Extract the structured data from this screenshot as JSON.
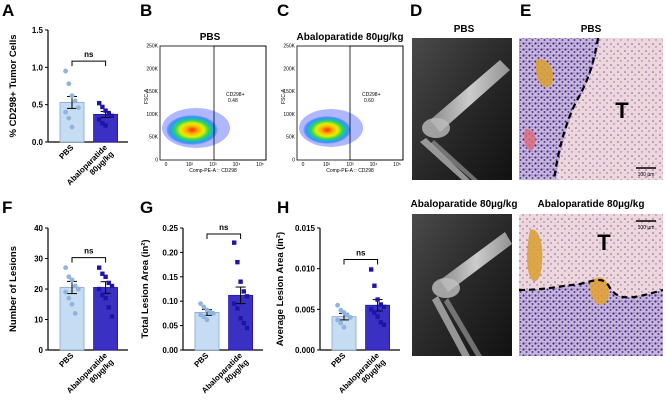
{
  "panel_labels": {
    "A": "A",
    "B": "B",
    "C": "C",
    "D": "D",
    "E": "E",
    "F": "F",
    "G": "G",
    "H": "H"
  },
  "colors": {
    "pbs_fill": "#c6dcf3",
    "pbs_edge": "#7fa7d8",
    "pbs_point": "#8fb4e0",
    "abalo_fill": "#3a31c4",
    "abalo_point": "#1f14a8"
  },
  "flow": {
    "pbs": {
      "title": "PBS",
      "gate_label": "CD298+",
      "gate_value": "0.48",
      "ylabel": "FSC-A",
      "xlabel": "Comp-PE-A :: CD298"
    },
    "abalo": {
      "title": "Abaloparatide 80µg/kg",
      "gate_label": "CD298+",
      "gate_value": "0.60",
      "ylabel": "FSC-A",
      "xlabel": "Comp-PE-A :: CD298"
    },
    "yticks": [
      "250K",
      "200K",
      "150K",
      "100K",
      "50K",
      "0"
    ],
    "xticks": [
      "0",
      "10²",
      "10³",
      "10⁴",
      "10⁵"
    ]
  },
  "images": {
    "xray_pbs_title": "PBS",
    "xray_abalo_title": "Abaloparatide 80µg/kg",
    "histo_pbs_title": "PBS",
    "histo_abalo_title": "Abaloparatide 80µg/kg",
    "tumor_label": "T",
    "scale_bar": "100 µm"
  },
  "chart_data": [
    {
      "id": "A",
      "type": "bar",
      "ylabel": "% CD298+ Tumor Cells",
      "ylim": [
        0,
        1.5
      ],
      "yticks": [
        "0.0",
        "0.5",
        "1.0",
        "1.5"
      ],
      "categories": [
        "PBS",
        "Abaloparatide 80µg/kg"
      ],
      "means": [
        0.53,
        0.37
      ],
      "sem": [
        0.08,
        0.04
      ],
      "points": [
        [
          0.95,
          0.78,
          0.62,
          0.55,
          0.46,
          0.4,
          0.32,
          0.2
        ],
        [
          0.52,
          0.47,
          0.42,
          0.38,
          0.35,
          0.3,
          0.25,
          0.22
        ]
      ],
      "sig": "ns"
    },
    {
      "id": "F",
      "type": "bar",
      "ylabel": "Number of Lesions",
      "ylim": [
        0,
        40
      ],
      "yticks": [
        "0",
        "10",
        "20",
        "30",
        "40"
      ],
      "categories": [
        "PBS",
        "Abaloparatide 80µg/kg"
      ],
      "means": [
        20.5,
        20.5
      ],
      "sem": [
        2.0,
        1.9
      ],
      "points": [
        [
          27,
          24,
          23,
          21,
          20,
          19,
          17,
          15,
          12
        ],
        [
          27,
          25,
          24,
          22,
          21,
          20,
          18,
          17,
          14,
          11
        ]
      ],
      "sig": "ns"
    },
    {
      "id": "G",
      "type": "bar",
      "ylabel": "Total Lesion Area (in²)",
      "ylim": [
        0,
        0.25
      ],
      "yticks": [
        "0.00",
        "0.05",
        "0.10",
        "0.15",
        "0.20",
        "0.25"
      ],
      "categories": [
        "PBS",
        "Abaloparatide 80µg/kg"
      ],
      "means": [
        0.077,
        0.112
      ],
      "sem": [
        0.006,
        0.017
      ],
      "points": [
        [
          0.095,
          0.088,
          0.082,
          0.078,
          0.075,
          0.072,
          0.068,
          0.062
        ],
        [
          0.22,
          0.18,
          0.14,
          0.12,
          0.11,
          0.095,
          0.085,
          0.065,
          0.055,
          0.045
        ]
      ],
      "sig": "ns"
    },
    {
      "id": "H",
      "type": "bar",
      "ylabel": "Average Lesion Area (in²)",
      "ylim": [
        0,
        0.015
      ],
      "yticks": [
        "0.000",
        "0.005",
        "0.010",
        "0.015"
      ],
      "categories": [
        "PBS",
        "Abaloparatide 80µg/kg"
      ],
      "means": [
        0.0041,
        0.0055
      ],
      "sem": [
        0.0004,
        0.0007
      ],
      "points": [
        [
          0.0055,
          0.0049,
          0.0046,
          0.0043,
          0.004,
          0.0037,
          0.0033,
          0.0028
        ],
        [
          0.0099,
          0.0079,
          0.0062,
          0.0056,
          0.0053,
          0.005,
          0.0046,
          0.0041,
          0.0034,
          0.0031
        ]
      ],
      "sig": "ns"
    }
  ]
}
